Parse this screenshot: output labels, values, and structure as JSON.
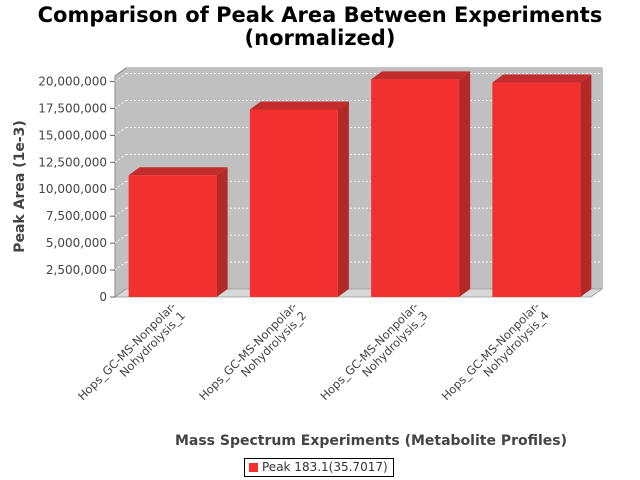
{
  "chart_data": {
    "type": "bar",
    "title_lines": [
      "Comparison of Peak Area Between Experiments",
      "(normalized)"
    ],
    "xlabel": "Mass Spectrum Experiments (Metabolite Profiles)",
    "ylabel": "Peak Area (1e-3)",
    "categories": [
      [
        "Hops_GC-MS-Nonpolar-",
        "Nohydrolysis_1"
      ],
      [
        "Hops_GC-MS-Nonpolar-",
        "Nohydrolysis_2"
      ],
      [
        "Hops_GC-MS-Nonpolar-",
        "Nohydrolysis_3"
      ],
      [
        "Hops_GC-MS-Nonpolar-",
        "Nohydrolysis_4"
      ]
    ],
    "series": [
      {
        "name": "Peak 183.1(35.7017)",
        "values": [
          11300000,
          17400000,
          20200000,
          19900000
        ],
        "color": "#f23030"
      }
    ],
    "ylim": [
      0,
      21250000
    ],
    "yticks": [
      0,
      2500000,
      5000000,
      7500000,
      10000000,
      12500000,
      15000000,
      17500000,
      20000000
    ],
    "ytick_labels": [
      "0",
      "2,500,000",
      "5,000,000",
      "7,500,000",
      "10,000,000",
      "12,500,000",
      "15,000,000",
      "17,500,000",
      "20,000,000"
    ],
    "grid": true,
    "legend_position": "bottom-center",
    "plot_background": "#c0c0c0"
  }
}
